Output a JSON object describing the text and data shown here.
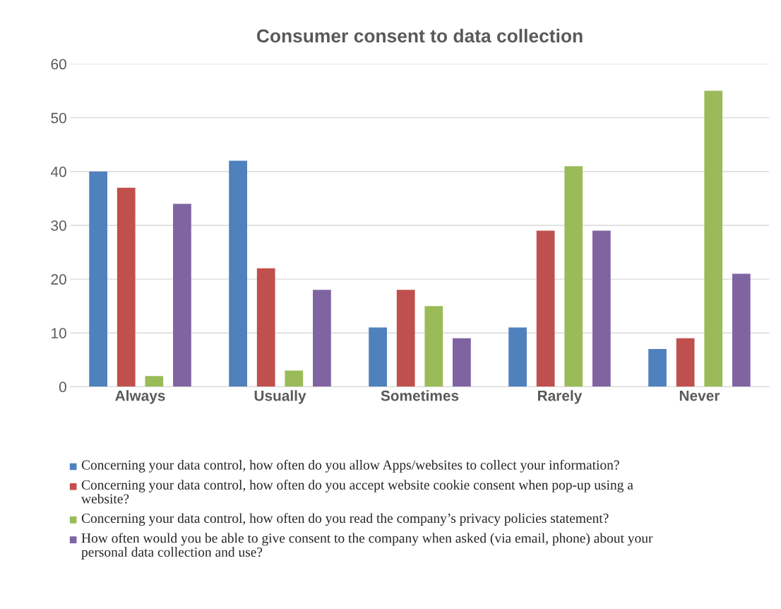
{
  "chart_data": {
    "type": "bar",
    "title": "Consumer consent to data collection",
    "categories": [
      "Always",
      "Usually",
      "Sometimes",
      "Rarely",
      "Never"
    ],
    "series": [
      {
        "name": "Concerning your data control, how often do you allow Apps/websites to collect your information?",
        "color": "#4f81bd",
        "values": [
          40,
          42,
          11,
          11,
          7
        ]
      },
      {
        "name": "Concerning your data control, how often do you accept website cookie consent when pop-up using a website?",
        "color": "#c0504d",
        "values": [
          37,
          22,
          18,
          29,
          9
        ]
      },
      {
        "name": "Concerning your data control, how often do you read the company’s privacy policies statement?",
        "color": "#9bbb59",
        "values": [
          2,
          3,
          15,
          41,
          55
        ]
      },
      {
        "name": "How often would you be able to give consent to the company when asked (via email, phone) about your personal data collection and use?",
        "color": "#8064a2",
        "values": [
          34,
          18,
          9,
          29,
          21
        ]
      }
    ],
    "ylim": [
      0,
      60
    ],
    "yticks": [
      0,
      10,
      20,
      30,
      40,
      50,
      60
    ],
    "grid": "y",
    "legend": "bottom"
  }
}
